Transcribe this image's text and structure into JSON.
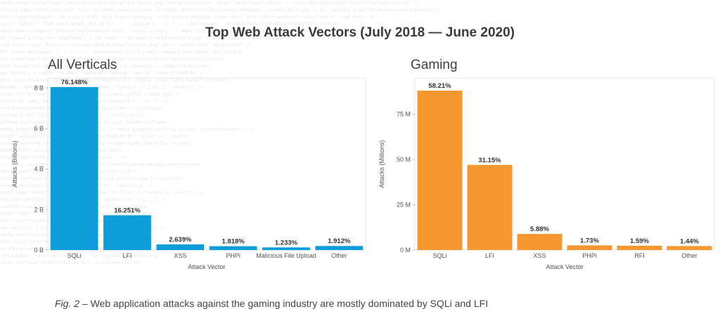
{
  "title": "Top Web Attack Vectors (July 2018 — June 2020)",
  "caption": {
    "fig": "Fig. 2",
    "separator": " – ",
    "text": "Web application attacks against the gaming industry are mostly dominated by SQLi and LFI"
  },
  "chart_data": [
    {
      "type": "bar",
      "title": "All Verticals",
      "xlabel": "Attack Vector",
      "ylabel": "Attacks (Billions)",
      "categories": [
        "SQLi",
        "LFI",
        "XSS",
        "PHPi",
        "Malicious File Upload",
        "Other"
      ],
      "values": [
        8.05,
        1.72,
        0.28,
        0.19,
        0.13,
        0.2
      ],
      "data_labels": [
        "76.148%",
        "16.251%",
        "2.639%",
        "1.818%",
        "1.233%",
        "1.912%"
      ],
      "ylim": [
        0,
        8.5
      ],
      "yticks": [
        0,
        2,
        4,
        6,
        8
      ],
      "ytick_labels": [
        "0 B",
        "2 B",
        "4 B",
        "6 B",
        "8 B"
      ],
      "color": "#0d9ddb",
      "grid": false
    },
    {
      "type": "bar",
      "title": "Gaming",
      "xlabel": "Attack Vector",
      "ylabel": "Attacks (Millions)",
      "categories": [
        "SQLi",
        "LFI",
        "XSS",
        "PHPi",
        "RFI",
        "Other"
      ],
      "values": [
        88,
        47,
        8.9,
        2.6,
        2.4,
        2.2
      ],
      "data_labels": [
        "58.21%",
        "31.15%",
        "5.88%",
        "1.73%",
        "1.59%",
        "1.44%"
      ],
      "ylim": [
        0,
        95
      ],
      "yticks": [
        0,
        25,
        50,
        75
      ],
      "ytick_labels": [
        "0 M",
        "25 M",
        "50 M",
        "75 M"
      ],
      "color": "#f7972f",
      "grid": false
    }
  ]
}
